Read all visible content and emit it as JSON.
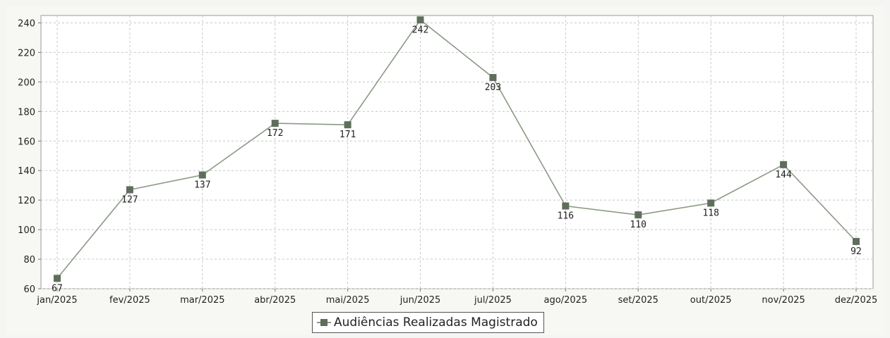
{
  "chart_data": {
    "type": "line",
    "categories": [
      "jan/2025",
      "fev/2025",
      "mar/2025",
      "abr/2025",
      "mai/2025",
      "jun/2025",
      "jul/2025",
      "ago/2025",
      "set/2025",
      "out/2025",
      "nov/2025",
      "dez/2025"
    ],
    "series": [
      {
        "name": "Audiências Realizadas Magistrado",
        "values": [
          67,
          127,
          137,
          172,
          171,
          242,
          203,
          116,
          110,
          118,
          144,
          92
        ],
        "data_labels": [
          "67",
          "127",
          "137",
          "172",
          "171",
          "242",
          "203",
          "116",
          "110",
          "118",
          "144",
          "92"
        ]
      }
    ],
    "y_ticks": [
      "60",
      "80",
      "100",
      "120",
      "140",
      "160",
      "180",
      "200",
      "220",
      "240"
    ],
    "ylim": [
      60,
      245
    ],
    "grid": true,
    "legend_position": "bottom-center",
    "colors": {
      "line": "#8a9a84",
      "marker": "#5f6e5b",
      "grid": "#c8c8c8",
      "plot_background": "#ffffff",
      "page_background": "#f5f5f3"
    }
  },
  "legend": {
    "label": "Audiências Realizadas Magistrado"
  }
}
